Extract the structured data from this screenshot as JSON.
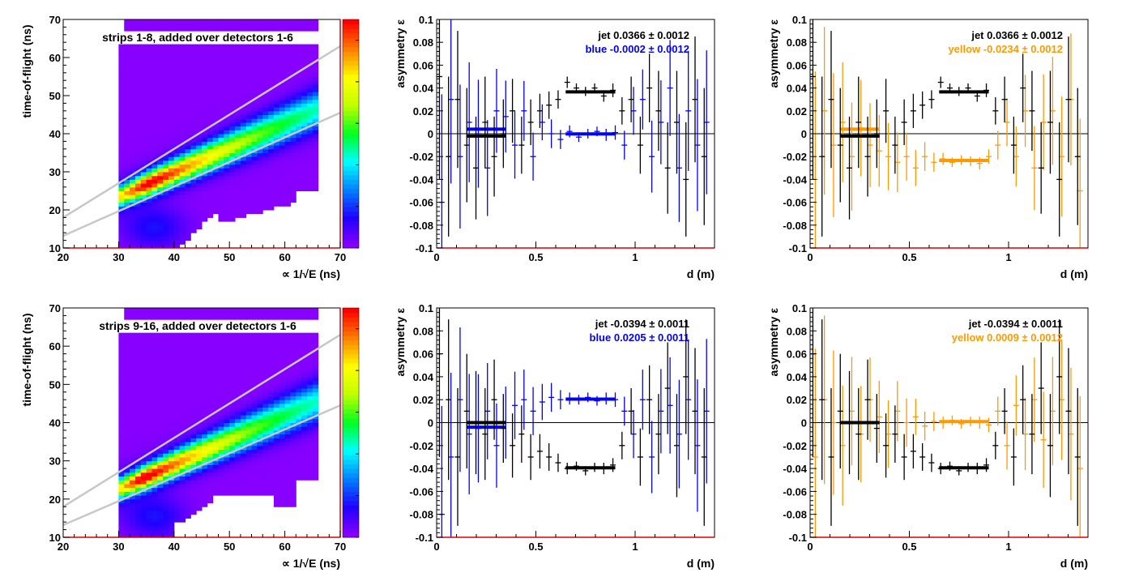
{
  "chart_data": [
    {
      "id": "tof-top",
      "type": "heatmap",
      "title": "strips 1-8, added over detectors 1-6",
      "xlabel": "∝ 1/√E (ns)",
      "ylabel": "time-of-flight (ns)",
      "xlim": [
        20,
        70
      ],
      "ylim": [
        10,
        70
      ],
      "xticks": [
        "20",
        "30",
        "40",
        "50",
        "60",
        "70"
      ],
      "yticks": [
        "10",
        "20",
        "30",
        "40",
        "50",
        "60",
        "70"
      ],
      "band": {
        "slope": 0.64,
        "intercept": 4.6,
        "peak_x": 35,
        "peak_y": 27
      },
      "coverage": {
        "xmin": 30,
        "xmax": 66,
        "ymax": 64,
        "extra_row": [
          67,
          70
        ]
      },
      "cut_lines": [
        {
          "x": [
            20,
            70
          ],
          "y": [
            18,
            63
          ]
        },
        {
          "x": [
            20,
            70
          ],
          "y": [
            13.2,
            45.5
          ]
        }
      ],
      "palette": [
        "#8800ff",
        "#2000ff",
        "#0080ff",
        "#00ffff",
        "#00ff20",
        "#c0ff00",
        "#ffff00",
        "#ff8000",
        "#ff0000"
      ]
    },
    {
      "id": "asym-top-blue",
      "type": "scatter",
      "xlabel": "d (m)",
      "ylabel": "asymmetry ε",
      "xlim": [
        0,
        1.4
      ],
      "ylim": [
        -0.1,
        0.1
      ],
      "xticks": [
        "0",
        "0.5",
        "1"
      ],
      "yticks": [
        "-0.1",
        "-0.08",
        "-0.06",
        "-0.04",
        "-0.02",
        "0",
        "0.02",
        "0.04",
        "0.06",
        "0.08",
        "0.1"
      ],
      "x": [
        0.02,
        0.066,
        0.112,
        0.158,
        0.204,
        0.25,
        0.296,
        0.342,
        0.388,
        0.434,
        0.48,
        0.526,
        0.572,
        0.618,
        0.664,
        0.71,
        0.756,
        0.802,
        0.848,
        0.894,
        0.94,
        0.986,
        1.032,
        1.078,
        1.124,
        1.17,
        1.216,
        1.262,
        1.308,
        1.354
      ],
      "err": [
        0.09,
        0.07,
        0.06,
        0.05,
        0.045,
        0.04,
        0.035,
        0.03,
        0.028,
        0.025,
        0.02,
        0.015,
        0.012,
        0.008,
        0.005,
        0.004,
        0.004,
        0.004,
        0.005,
        0.006,
        0.012,
        0.02,
        0.025,
        0.03,
        0.035,
        0.04,
        0.045,
        0.05,
        0.055,
        0.06
      ],
      "series": [
        {
          "name": "jet",
          "color": "#000000",
          "legend": "jet  0.0366 ± 0.0012",
          "values": [
            0.05,
            -0.02,
            0.03,
            -0.01,
            -0.03,
            0.01,
            -0.02,
            0.0,
            0.02,
            -0.01,
            0.01,
            0.02,
            0.025,
            0.03,
            0.045,
            0.04,
            0.037,
            0.04,
            0.033,
            0.038,
            0.02,
            0.03,
            -0.01,
            0.04,
            0.02,
            -0.03,
            0.01,
            -0.04,
            0.03,
            -0.02
          ],
          "fits": [
            {
              "range": [
                0.15,
                0.35
              ],
              "value": -0.002
            },
            {
              "range": [
                0.65,
                0.9
              ],
              "value": 0.0366
            }
          ]
        },
        {
          "name": "blue",
          "color": "#0000ff",
          "legend": "blue -0.0002 ± 0.0012",
          "values": [
            -0.06,
            0.03,
            -0.02,
            0.01,
            0.0,
            -0.03,
            0.02,
            0.015,
            -0.01,
            0.02,
            -0.02,
            0.01,
            0.0,
            -0.005,
            0.002,
            -0.003,
            0.0,
            0.002,
            -0.001,
            0.001,
            -0.01,
            0.02,
            0.03,
            -0.02,
            0.01,
            0.04,
            -0.03,
            0.02,
            -0.01,
            0.01
          ],
          "fits": [
            {
              "range": [
                0.15,
                0.35
              ],
              "value": 0.004
            },
            {
              "range": [
                0.65,
                0.9
              ],
              "value": -0.0002
            }
          ]
        }
      ]
    },
    {
      "id": "asym-top-yellow",
      "type": "scatter",
      "xlabel": "d (m)",
      "ylabel": "asymmetry ε",
      "xlim": [
        0,
        1.4
      ],
      "ylim": [
        -0.1,
        0.1
      ],
      "xticks": [
        "0",
        "0.5",
        "1"
      ],
      "yticks": [
        "-0.1",
        "-0.08",
        "-0.06",
        "-0.04",
        "-0.02",
        "0",
        "0.02",
        "0.04",
        "0.06",
        "0.08",
        "0.1"
      ],
      "x": [
        0.02,
        0.066,
        0.112,
        0.158,
        0.204,
        0.25,
        0.296,
        0.342,
        0.388,
        0.434,
        0.48,
        0.526,
        0.572,
        0.618,
        0.664,
        0.71,
        0.756,
        0.802,
        0.848,
        0.894,
        0.94,
        0.986,
        1.032,
        1.078,
        1.124,
        1.17,
        1.216,
        1.262,
        1.308,
        1.354
      ],
      "err": [
        0.09,
        0.07,
        0.06,
        0.05,
        0.045,
        0.04,
        0.035,
        0.03,
        0.028,
        0.025,
        0.02,
        0.015,
        0.012,
        0.008,
        0.005,
        0.004,
        0.004,
        0.004,
        0.005,
        0.006,
        0.012,
        0.02,
        0.025,
        0.03,
        0.035,
        0.04,
        0.045,
        0.05,
        0.055,
        0.06
      ],
      "series": [
        {
          "name": "jet",
          "color": "#000000",
          "legend": "jet  0.0366 ± 0.0012",
          "values": [
            0.05,
            -0.02,
            0.03,
            -0.01,
            -0.03,
            0.01,
            -0.02,
            0.0,
            0.02,
            -0.01,
            0.01,
            0.02,
            0.025,
            0.03,
            0.045,
            0.04,
            0.037,
            0.04,
            0.033,
            0.038,
            0.02,
            0.03,
            -0.01,
            0.04,
            0.02,
            -0.03,
            0.01,
            -0.04,
            0.03,
            -0.02
          ],
          "fits": [
            {
              "range": [
                0.15,
                0.35
              ],
              "value": -0.002
            },
            {
              "range": [
                0.65,
                0.9
              ],
              "value": 0.0366
            }
          ]
        },
        {
          "name": "yellow",
          "color": "#ff9900",
          "legend": "yellow -0.0234 ± 0.0012",
          "values": [
            -0.04,
            0.02,
            -0.01,
            0.01,
            -0.02,
            0.005,
            -0.01,
            -0.015,
            -0.02,
            -0.025,
            -0.02,
            -0.03,
            -0.02,
            -0.025,
            -0.022,
            -0.025,
            -0.023,
            -0.024,
            -0.026,
            -0.02,
            -0.01,
            0.01,
            -0.02,
            0.02,
            -0.03,
            0.01,
            0.02,
            -0.02,
            0.03,
            -0.05
          ],
          "fits": [
            {
              "range": [
                0.15,
                0.35
              ],
              "value": 0.004
            },
            {
              "range": [
                0.65,
                0.9
              ],
              "value": -0.0234
            }
          ]
        }
      ]
    },
    {
      "id": "tof-bottom",
      "type": "heatmap",
      "title": "strips 9-16, added over detectors 1-6",
      "xlabel": "∝ 1/√E (ns)",
      "ylabel": "time-of-flight (ns)",
      "xlim": [
        20,
        70
      ],
      "ylim": [
        10,
        70
      ],
      "xticks": [
        "20",
        "30",
        "40",
        "50",
        "60",
        "70"
      ],
      "yticks": [
        "10",
        "20",
        "30",
        "40",
        "50",
        "60",
        "70"
      ],
      "band": {
        "slope": 0.64,
        "intercept": 3.8,
        "peak_x": 34,
        "peak_y": 25.5
      },
      "coverage": {
        "xmin": 30,
        "xmax": 66,
        "ymax": 64,
        "extra_row": [
          67,
          70
        ]
      },
      "cut_lines": [
        {
          "x": [
            20,
            70
          ],
          "y": [
            18,
            63
          ]
        },
        {
          "x": [
            20,
            70
          ],
          "y": [
            13.2,
            44.5
          ]
        }
      ],
      "palette": [
        "#8800ff",
        "#2000ff",
        "#0080ff",
        "#00ffff",
        "#00ff20",
        "#c0ff00",
        "#ffff00",
        "#ff8000",
        "#ff0000"
      ]
    },
    {
      "id": "asym-bottom-blue",
      "type": "scatter",
      "xlabel": "d (m)",
      "ylabel": "asymmetry ε",
      "xlim": [
        0,
        1.4
      ],
      "ylim": [
        -0.1,
        0.1
      ],
      "xticks": [
        "0",
        "0.5",
        "1"
      ],
      "yticks": [
        "-0.1",
        "-0.08",
        "-0.06",
        "-0.04",
        "-0.02",
        "0",
        "0.02",
        "0.04",
        "0.06",
        "0.08",
        "0.1"
      ],
      "x": [
        0.02,
        0.066,
        0.112,
        0.158,
        0.204,
        0.25,
        0.296,
        0.342,
        0.388,
        0.434,
        0.48,
        0.526,
        0.572,
        0.618,
        0.664,
        0.71,
        0.756,
        0.802,
        0.848,
        0.894,
        0.94,
        0.986,
        1.032,
        1.078,
        1.124,
        1.17,
        1.216,
        1.262,
        1.308,
        1.354
      ],
      "err": [
        0.09,
        0.07,
        0.06,
        0.05,
        0.045,
        0.04,
        0.035,
        0.03,
        0.028,
        0.025,
        0.02,
        0.015,
        0.012,
        0.008,
        0.005,
        0.004,
        0.004,
        0.004,
        0.005,
        0.006,
        0.012,
        0.02,
        0.025,
        0.03,
        0.035,
        0.04,
        0.045,
        0.05,
        0.055,
        0.06
      ],
      "series": [
        {
          "name": "jet",
          "color": "#000000",
          "legend": "jet -0.0394 ± 0.0011",
          "values": [
            0.06,
            0.02,
            -0.03,
            0.01,
            0.0,
            -0.01,
            0.02,
            -0.005,
            -0.02,
            -0.01,
            -0.03,
            -0.025,
            -0.03,
            -0.035,
            -0.04,
            -0.038,
            -0.042,
            -0.039,
            -0.04,
            -0.037,
            -0.02,
            0.01,
            -0.03,
            0.02,
            -0.01,
            0.03,
            -0.02,
            0.04,
            0.01,
            -0.03
          ],
          "fits": [
            {
              "range": [
                0.15,
                0.35
              ],
              "value": 0.0
            },
            {
              "range": [
                0.65,
                0.9
              ],
              "value": -0.0394
            }
          ]
        },
        {
          "name": "blue",
          "color": "#0000ff",
          "legend": "blue  0.0205 ± 0.0011",
          "values": [
            -0.08,
            -0.03,
            0.02,
            -0.01,
            -0.005,
            0.01,
            -0.02,
            0.0,
            0.015,
            0.02,
            0.01,
            0.018,
            0.022,
            0.02,
            0.021,
            0.02,
            0.022,
            0.019,
            0.021,
            0.02,
            0.01,
            -0.01,
            0.02,
            -0.03,
            0.01,
            0.015,
            -0.01,
            0.02,
            -0.02,
            0.01
          ],
          "fits": [
            {
              "range": [
                0.15,
                0.35
              ],
              "value": -0.004
            },
            {
              "range": [
                0.65,
                0.9
              ],
              "value": 0.0205
            }
          ]
        }
      ]
    },
    {
      "id": "asym-bottom-yellow",
      "type": "scatter",
      "xlabel": "d (m)",
      "ylabel": "asymmetry ε",
      "xlim": [
        0,
        1.4
      ],
      "ylim": [
        -0.1,
        0.1
      ],
      "xticks": [
        "0",
        "0.5",
        "1"
      ],
      "yticks": [
        "-0.1",
        "-0.08",
        "-0.06",
        "-0.04",
        "-0.02",
        "0",
        "0.02",
        "0.04",
        "0.06",
        "0.08",
        "0.1"
      ],
      "x": [
        0.02,
        0.066,
        0.112,
        0.158,
        0.204,
        0.25,
        0.296,
        0.342,
        0.388,
        0.434,
        0.48,
        0.526,
        0.572,
        0.618,
        0.664,
        0.71,
        0.756,
        0.802,
        0.848,
        0.894,
        0.94,
        0.986,
        1.032,
        1.078,
        1.124,
        1.17,
        1.216,
        1.262,
        1.308,
        1.354
      ],
      "err": [
        0.09,
        0.07,
        0.06,
        0.05,
        0.045,
        0.04,
        0.035,
        0.03,
        0.028,
        0.025,
        0.02,
        0.015,
        0.012,
        0.008,
        0.005,
        0.004,
        0.004,
        0.004,
        0.005,
        0.006,
        0.012,
        0.02,
        0.025,
        0.03,
        0.035,
        0.04,
        0.045,
        0.05,
        0.055,
        0.06
      ],
      "series": [
        {
          "name": "jet",
          "color": "#000000",
          "legend": "jet -0.0394 ± 0.0011",
          "values": [
            0.06,
            0.02,
            -0.03,
            0.01,
            0.0,
            -0.01,
            0.02,
            -0.005,
            -0.02,
            -0.01,
            -0.03,
            -0.025,
            -0.03,
            -0.035,
            -0.04,
            -0.038,
            -0.042,
            -0.039,
            -0.04,
            -0.037,
            -0.02,
            0.01,
            -0.03,
            0.02,
            -0.01,
            0.03,
            -0.02,
            0.04,
            0.01,
            -0.03
          ],
          "fits": [
            {
              "range": [
                0.15,
                0.35
              ],
              "value": 0.0
            },
            {
              "range": [
                0.65,
                0.9
              ],
              "value": -0.0394
            }
          ]
        },
        {
          "name": "yellow",
          "color": "#ff9900",
          "legend": "yellow  0.0009 ± 0.0012",
          "values": [
            -0.03,
            0.02,
            0.0,
            -0.02,
            0.01,
            -0.01,
            0.02,
            0.005,
            -0.01,
            0.01,
            0.0,
            0.005,
            -0.003,
            0.001,
            0.0,
            0.002,
            -0.001,
            0.001,
            0.0,
            -0.002,
            0.01,
            -0.02,
            0.015,
            -0.01,
            0.02,
            -0.015,
            0.01,
            0.02,
            -0.01,
            -0.04
          ],
          "fits": [
            {
              "range": [
                0.15,
                0.35
              ],
              "value": 0.0
            },
            {
              "range": [
                0.65,
                0.9
              ],
              "value": 0.0009
            }
          ]
        }
      ]
    }
  ]
}
